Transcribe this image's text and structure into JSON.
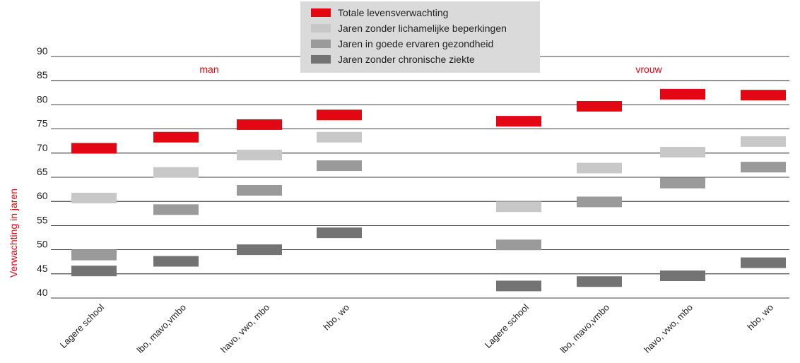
{
  "chart_data": {
    "type": "range",
    "title": "",
    "xlabel": "",
    "ylabel": "Verwachting in jaren",
    "ylim": [
      40,
      90
    ],
    "yticks": [
      40,
      45,
      50,
      55,
      60,
      65,
      70,
      75,
      80,
      85,
      90
    ],
    "grid": true,
    "legend_position": "top-center",
    "groups": [
      {
        "label": "man",
        "categories": [
          "Lagere school",
          "lbo, mavo,vmbo",
          "havo, vwo, mbo",
          "hbo, wo"
        ]
      },
      {
        "label": "vrouw",
        "categories": [
          "Lagere school",
          "lbo, mavo,vmbo",
          "havo, vwo, mbo",
          "hbo, wo"
        ]
      }
    ],
    "series": [
      {
        "name": "Totale levensverwachting",
        "color": "#e30613",
        "values": [
          71.0,
          73.3,
          75.9,
          77.9,
          76.6,
          79.7,
          82.2,
          82.0
        ]
      },
      {
        "name": "Jaren zonder lichamelijke beperkingen",
        "color": "#c8c8c8",
        "values": [
          60.7,
          66.0,
          69.6,
          73.3,
          58.9,
          66.9,
          70.2,
          72.4
        ]
      },
      {
        "name": "Jaren in goede ervaren gezondheid",
        "color": "#9a9a9a",
        "values": [
          48.9,
          58.3,
          62.3,
          67.4,
          51.0,
          59.9,
          63.8,
          67.1
        ]
      },
      {
        "name": "Jaren zonder chronische ziekte",
        "color": "#737373",
        "values": [
          45.6,
          47.6,
          50.0,
          53.5,
          42.5,
          43.4,
          44.6,
          47.3
        ]
      }
    ]
  }
}
